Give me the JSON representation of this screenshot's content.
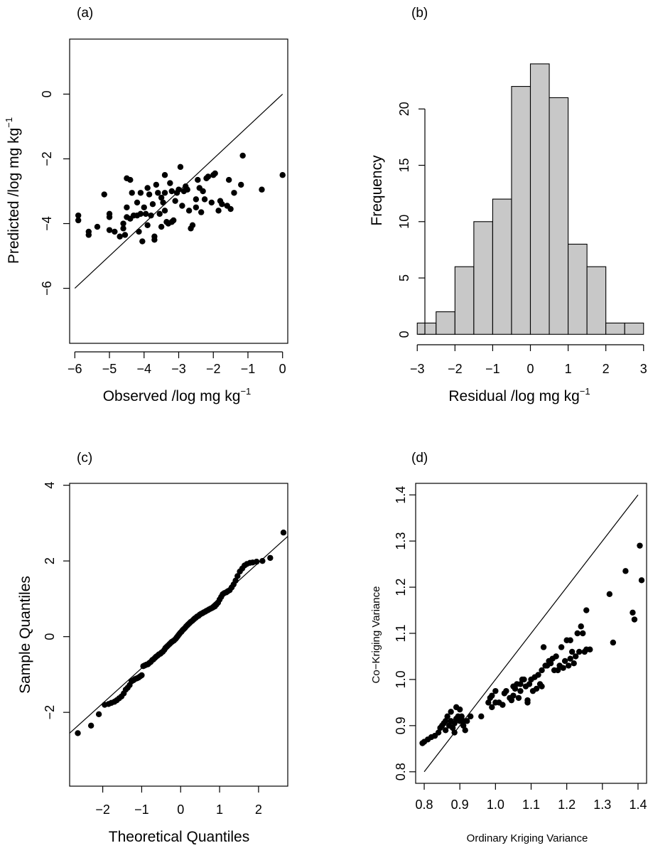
{
  "chart_data": [
    {
      "panel_label": "(a)",
      "type": "scatter",
      "xlabel": "Observed /log mg kg",
      "xlabel_sup": "−1",
      "ylabel": "Predicted /log mg kg",
      "ylabel_sup": "−1",
      "xlim": [
        -6.15,
        0.15
      ],
      "ylim": [
        -7.7,
        1.7
      ],
      "xticks": [
        -6,
        -5,
        -4,
        -3,
        -2,
        -1,
        0
      ],
      "xtick_labels": [
        "−6",
        "−5",
        "−4",
        "−3",
        "−2",
        "−1",
        "0"
      ],
      "yticks": [
        -6,
        -4,
        -2,
        0
      ],
      "ytick_labels": [
        "−6",
        "−4",
        "−2",
        "0"
      ],
      "reference_line": [
        [
          -6,
          -6
        ],
        [
          0,
          0
        ]
      ],
      "points": [
        [
          -5.9,
          -3.75
        ],
        [
          -5.9,
          -3.9
        ],
        [
          -5.6,
          -4.25
        ],
        [
          -5.6,
          -4.35
        ],
        [
          -5.35,
          -4.1
        ],
        [
          -5.15,
          -3.1
        ],
        [
          -5.0,
          -3.7
        ],
        [
          -5.0,
          -3.8
        ],
        [
          -5.0,
          -4.2
        ],
        [
          -4.85,
          -4.25
        ],
        [
          -4.7,
          -4.4
        ],
        [
          -4.6,
          -4.0
        ],
        [
          -4.6,
          -4.15
        ],
        [
          -4.55,
          -4.35
        ],
        [
          -4.5,
          -2.6
        ],
        [
          -4.5,
          -3.5
        ],
        [
          -4.5,
          -3.8
        ],
        [
          -4.4,
          -2.65
        ],
        [
          -4.4,
          -3.85
        ],
        [
          -4.35,
          -3.05
        ],
        [
          -4.3,
          -3.75
        ],
        [
          -4.2,
          -3.35
        ],
        [
          -4.2,
          -3.75
        ],
        [
          -4.15,
          -4.25
        ],
        [
          -4.1,
          -3.05
        ],
        [
          -4.1,
          -3.7
        ],
        [
          -4.05,
          -4.55
        ],
        [
          -4.0,
          -3.5
        ],
        [
          -3.95,
          -3.7
        ],
        [
          -3.9,
          -2.9
        ],
        [
          -3.9,
          -4.05
        ],
        [
          -3.85,
          -3.1
        ],
        [
          -3.8,
          -3.75
        ],
        [
          -3.75,
          -3.4
        ],
        [
          -3.7,
          -4.4
        ],
        [
          -3.7,
          -4.5
        ],
        [
          -3.65,
          -2.8
        ],
        [
          -3.6,
          -3.05
        ],
        [
          -3.55,
          -3.7
        ],
        [
          -3.5,
          -3.2
        ],
        [
          -3.5,
          -4.1
        ],
        [
          -3.45,
          -3.35
        ],
        [
          -3.4,
          -2.5
        ],
        [
          -3.4,
          -3.05
        ],
        [
          -3.4,
          -3.6
        ],
        [
          -3.35,
          -3.95
        ],
        [
          -3.3,
          -4.0
        ],
        [
          -3.25,
          -2.75
        ],
        [
          -3.2,
          -3.0
        ],
        [
          -3.2,
          -3.95
        ],
        [
          -3.15,
          -3.9
        ],
        [
          -3.1,
          -3.3
        ],
        [
          -3.05,
          -3.05
        ],
        [
          -3.0,
          -2.95
        ],
        [
          -2.95,
          -2.25
        ],
        [
          -2.9,
          -3.45
        ],
        [
          -2.85,
          -3.0
        ],
        [
          -2.8,
          -2.85
        ],
        [
          -2.75,
          -2.95
        ],
        [
          -2.7,
          -3.6
        ],
        [
          -2.65,
          -4.15
        ],
        [
          -2.6,
          -4.05
        ],
        [
          -2.5,
          -3.25
        ],
        [
          -2.5,
          -3.5
        ],
        [
          -2.45,
          -2.65
        ],
        [
          -2.4,
          -2.9
        ],
        [
          -2.35,
          -3.65
        ],
        [
          -2.3,
          -3.0
        ],
        [
          -2.25,
          -3.25
        ],
        [
          -2.2,
          -2.6
        ],
        [
          -2.15,
          -2.55
        ],
        [
          -2.05,
          -3.35
        ],
        [
          -2.0,
          -2.5
        ],
        [
          -1.95,
          -2.45
        ],
        [
          -1.85,
          -3.6
        ],
        [
          -1.8,
          -3.3
        ],
        [
          -1.75,
          -3.4
        ],
        [
          -1.6,
          -3.45
        ],
        [
          -1.55,
          -2.65
        ],
        [
          -1.5,
          -3.55
        ],
        [
          -1.4,
          -3.05
        ],
        [
          -1.2,
          -2.8
        ],
        [
          -1.15,
          -1.9
        ],
        [
          -0.6,
          -2.95
        ],
        [
          0.0,
          -2.5
        ]
      ]
    },
    {
      "panel_label": "(b)",
      "type": "bar",
      "xlabel": "Residual /log mg kg",
      "xlabel_sup": "−1",
      "ylabel": "Frequency",
      "xlim": [
        -3.08,
        3.08
      ],
      "ylim": [
        -0.8,
        26.2
      ],
      "xticks": [
        -3,
        -2,
        -1,
        0,
        1,
        2,
        3
      ],
      "xtick_labels": [
        "−3",
        "−2",
        "−1",
        "0",
        "1",
        "2",
        "3"
      ],
      "yticks": [
        0,
        5,
        10,
        15,
        20
      ],
      "ytick_labels": [
        "0",
        "5",
        "10",
        "15",
        "20"
      ],
      "bin_edges": [
        -3,
        -2.5,
        -2,
        -1.5,
        -1,
        -0.5,
        0,
        0.5,
        1,
        1.5,
        2,
        2.5,
        3
      ],
      "values": [
        1,
        2,
        6,
        10,
        12,
        22,
        24,
        21,
        8,
        6,
        1,
        1
      ],
      "bar_color": "#c8c8c8"
    },
    {
      "panel_label": "(c)",
      "type": "scatter",
      "xlabel": "Theoretical Quantiles",
      "ylabel": "Sample Quantiles",
      "xlim": [
        -2.85,
        2.75
      ],
      "ylim": [
        -3.95,
        4.05
      ],
      "xticks": [
        -2,
        -1,
        0,
        1,
        2
      ],
      "xtick_labels": [
        "−2",
        "−1",
        "0",
        "1",
        "2"
      ],
      "yticks": [
        -2,
        0,
        2,
        4
      ],
      "ytick_labels": [
        "−2",
        "0",
        "2",
        "4"
      ],
      "reference_line": [
        [
          -2.85,
          -2.55
        ],
        [
          2.75,
          2.65
        ]
      ],
      "points": [
        [
          -2.64,
          -2.55
        ],
        [
          -2.3,
          -2.35
        ],
        [
          -2.1,
          -2.05
        ],
        [
          -1.95,
          -1.8
        ],
        [
          -1.85,
          -1.78
        ],
        [
          -1.78,
          -1.75
        ],
        [
          -1.7,
          -1.72
        ],
        [
          -1.64,
          -1.68
        ],
        [
          -1.58,
          -1.63
        ],
        [
          -1.52,
          -1.58
        ],
        [
          -1.46,
          -1.5
        ],
        [
          -1.41,
          -1.4
        ],
        [
          -1.36,
          -1.35
        ],
        [
          -1.31,
          -1.28
        ],
        [
          -1.26,
          -1.18
        ],
        [
          -1.21,
          -1.15
        ],
        [
          -1.17,
          -1.12
        ],
        [
          -1.12,
          -1.1
        ],
        [
          -1.08,
          -1.08
        ],
        [
          -1.04,
          -1.05
        ],
        [
          -1.0,
          -1.02
        ],
        [
          -0.96,
          -0.78
        ],
        [
          -0.92,
          -0.76
        ],
        [
          -0.88,
          -0.74
        ],
        [
          -0.84,
          -0.73
        ],
        [
          -0.81,
          -0.7
        ],
        [
          -0.77,
          -0.67
        ],
        [
          -0.73,
          -0.62
        ],
        [
          -0.7,
          -0.6
        ],
        [
          -0.66,
          -0.56
        ],
        [
          -0.63,
          -0.53
        ],
        [
          -0.59,
          -0.5
        ],
        [
          -0.56,
          -0.47
        ],
        [
          -0.52,
          -0.45
        ],
        [
          -0.49,
          -0.42
        ],
        [
          -0.46,
          -0.4
        ],
        [
          -0.42,
          -0.35
        ],
        [
          -0.39,
          -0.3
        ],
        [
          -0.36,
          -0.27
        ],
        [
          -0.33,
          -0.24
        ],
        [
          -0.29,
          -0.2
        ],
        [
          -0.26,
          -0.17
        ],
        [
          -0.23,
          -0.14
        ],
        [
          -0.2,
          -0.12
        ],
        [
          -0.17,
          -0.1
        ],
        [
          -0.13,
          -0.06
        ],
        [
          -0.1,
          -0.02
        ],
        [
          -0.07,
          0.02
        ],
        [
          -0.04,
          0.06
        ],
        [
          -0.01,
          0.1
        ],
        [
          0.02,
          0.13
        ],
        [
          0.05,
          0.17
        ],
        [
          0.08,
          0.2
        ],
        [
          0.11,
          0.23
        ],
        [
          0.14,
          0.27
        ],
        [
          0.17,
          0.3
        ],
        [
          0.2,
          0.33
        ],
        [
          0.23,
          0.36
        ],
        [
          0.26,
          0.39
        ],
        [
          0.3,
          0.42
        ],
        [
          0.33,
          0.45
        ],
        [
          0.36,
          0.48
        ],
        [
          0.39,
          0.5
        ],
        [
          0.42,
          0.53
        ],
        [
          0.46,
          0.55
        ],
        [
          0.49,
          0.58
        ],
        [
          0.52,
          0.6
        ],
        [
          0.56,
          0.62
        ],
        [
          0.59,
          0.64
        ],
        [
          0.63,
          0.66
        ],
        [
          0.66,
          0.68
        ],
        [
          0.7,
          0.7
        ],
        [
          0.73,
          0.72
        ],
        [
          0.77,
          0.74
        ],
        [
          0.81,
          0.76
        ],
        [
          0.84,
          0.78
        ],
        [
          0.88,
          0.8
        ],
        [
          0.92,
          0.85
        ],
        [
          0.96,
          0.9
        ],
        [
          1.0,
          0.98
        ],
        [
          1.04,
          1.05
        ],
        [
          1.08,
          1.12
        ],
        [
          1.12,
          1.15
        ],
        [
          1.17,
          1.17
        ],
        [
          1.21,
          1.2
        ],
        [
          1.26,
          1.23
        ],
        [
          1.31,
          1.3
        ],
        [
          1.36,
          1.38
        ],
        [
          1.41,
          1.48
        ],
        [
          1.46,
          1.6
        ],
        [
          1.52,
          1.72
        ],
        [
          1.58,
          1.8
        ],
        [
          1.64,
          1.88
        ],
        [
          1.7,
          1.92
        ],
        [
          1.78,
          1.95
        ],
        [
          1.85,
          1.96
        ],
        [
          1.95,
          1.98
        ],
        [
          2.1,
          2.0
        ],
        [
          2.3,
          2.08
        ],
        [
          2.64,
          2.75
        ]
      ]
    },
    {
      "panel_label": "(d)",
      "type": "scatter",
      "xlabel": "Ordinary Kriging Variance",
      "ylabel": "Co−Kriging Variance",
      "xlim": [
        0.776,
        1.424
      ],
      "ylim": [
        0.775,
        1.425
      ],
      "xticks": [
        0.8,
        0.9,
        1.0,
        1.1,
        1.2,
        1.3,
        1.4
      ],
      "xtick_labels": [
        "0.8",
        "0.9",
        "1.0",
        "1.1",
        "1.2",
        "1.3",
        "1.4"
      ],
      "yticks": [
        0.8,
        0.9,
        1.0,
        1.1,
        1.2,
        1.3,
        1.4
      ],
      "ytick_labels": [
        "0.8",
        "0.9",
        "1.0",
        "1.1",
        "1.2",
        "1.3",
        "1.4"
      ],
      "reference_line": [
        [
          0.8,
          0.8
        ],
        [
          1.4,
          1.4
        ]
      ],
      "points": [
        [
          0.795,
          0.862
        ],
        [
          0.8,
          0.865
        ],
        [
          0.81,
          0.87
        ],
        [
          0.82,
          0.875
        ],
        [
          0.83,
          0.878
        ],
        [
          0.84,
          0.885
        ],
        [
          0.845,
          0.895
        ],
        [
          0.85,
          0.9
        ],
        [
          0.855,
          0.905
        ],
        [
          0.86,
          0.91
        ],
        [
          0.86,
          0.89
        ],
        [
          0.865,
          0.92
        ],
        [
          0.87,
          0.9
        ],
        [
          0.875,
          0.91
        ],
        [
          0.875,
          0.93
        ],
        [
          0.88,
          0.895
        ],
        [
          0.885,
          0.905
        ],
        [
          0.885,
          0.885
        ],
        [
          0.89,
          0.94
        ],
        [
          0.89,
          0.915
        ],
        [
          0.895,
          0.92
        ],
        [
          0.9,
          0.91
        ],
        [
          0.9,
          0.935
        ],
        [
          0.905,
          0.92
        ],
        [
          0.91,
          0.9
        ],
        [
          0.91,
          0.91
        ],
        [
          0.915,
          0.89
        ],
        [
          0.92,
          0.91
        ],
        [
          0.93,
          0.92
        ],
        [
          0.96,
          0.92
        ],
        [
          0.98,
          0.95
        ],
        [
          0.985,
          0.96
        ],
        [
          0.99,
          0.94
        ],
        [
          0.99,
          0.965
        ],
        [
          1.0,
          0.975
        ],
        [
          1.0,
          0.95
        ],
        [
          1.01,
          0.95
        ],
        [
          1.02,
          0.945
        ],
        [
          1.025,
          0.97
        ],
        [
          1.03,
          0.975
        ],
        [
          1.04,
          0.96
        ],
        [
          1.045,
          0.955
        ],
        [
          1.05,
          0.965
        ],
        [
          1.05,
          0.985
        ],
        [
          1.055,
          0.98
        ],
        [
          1.06,
          0.99
        ],
        [
          1.065,
          0.96
        ],
        [
          1.07,
          0.99
        ],
        [
          1.07,
          0.975
        ],
        [
          1.075,
          1.0
        ],
        [
          1.08,
          1.0
        ],
        [
          1.085,
          0.985
        ],
        [
          1.09,
          0.955
        ],
        [
          1.09,
          0.95
        ],
        [
          1.095,
          0.99
        ],
        [
          1.1,
          1.0
        ],
        [
          1.105,
          0.975
        ],
        [
          1.11,
          1.005
        ],
        [
          1.115,
          0.98
        ],
        [
          1.12,
          1.01
        ],
        [
          1.125,
          0.99
        ],
        [
          1.13,
          0.985
        ],
        [
          1.13,
          1.02
        ],
        [
          1.135,
          1.07
        ],
        [
          1.14,
          1.03
        ],
        [
          1.145,
          1.03
        ],
        [
          1.15,
          1.04
        ],
        [
          1.155,
          1.035
        ],
        [
          1.16,
          1.045
        ],
        [
          1.165,
          1.02
        ],
        [
          1.17,
          1.05
        ],
        [
          1.175,
          1.02
        ],
        [
          1.18,
          1.03
        ],
        [
          1.185,
          1.07
        ],
        [
          1.19,
          1.025
        ],
        [
          1.195,
          1.04
        ],
        [
          1.2,
          1.085
        ],
        [
          1.205,
          1.03
        ],
        [
          1.21,
          1.045
        ],
        [
          1.21,
          1.085
        ],
        [
          1.215,
          1.06
        ],
        [
          1.22,
          1.035
        ],
        [
          1.225,
          1.05
        ],
        [
          1.23,
          1.1
        ],
        [
          1.235,
          1.06
        ],
        [
          1.24,
          1.115
        ],
        [
          1.245,
          1.1
        ],
        [
          1.25,
          1.06
        ],
        [
          1.255,
          1.065
        ],
        [
          1.255,
          1.15
        ],
        [
          1.265,
          1.065
        ],
        [
          1.32,
          1.185
        ],
        [
          1.33,
          1.08
        ],
        [
          1.365,
          1.235
        ],
        [
          1.385,
          1.145
        ],
        [
          1.39,
          1.13
        ],
        [
          1.405,
          1.29
        ],
        [
          1.41,
          1.215
        ]
      ]
    }
  ]
}
